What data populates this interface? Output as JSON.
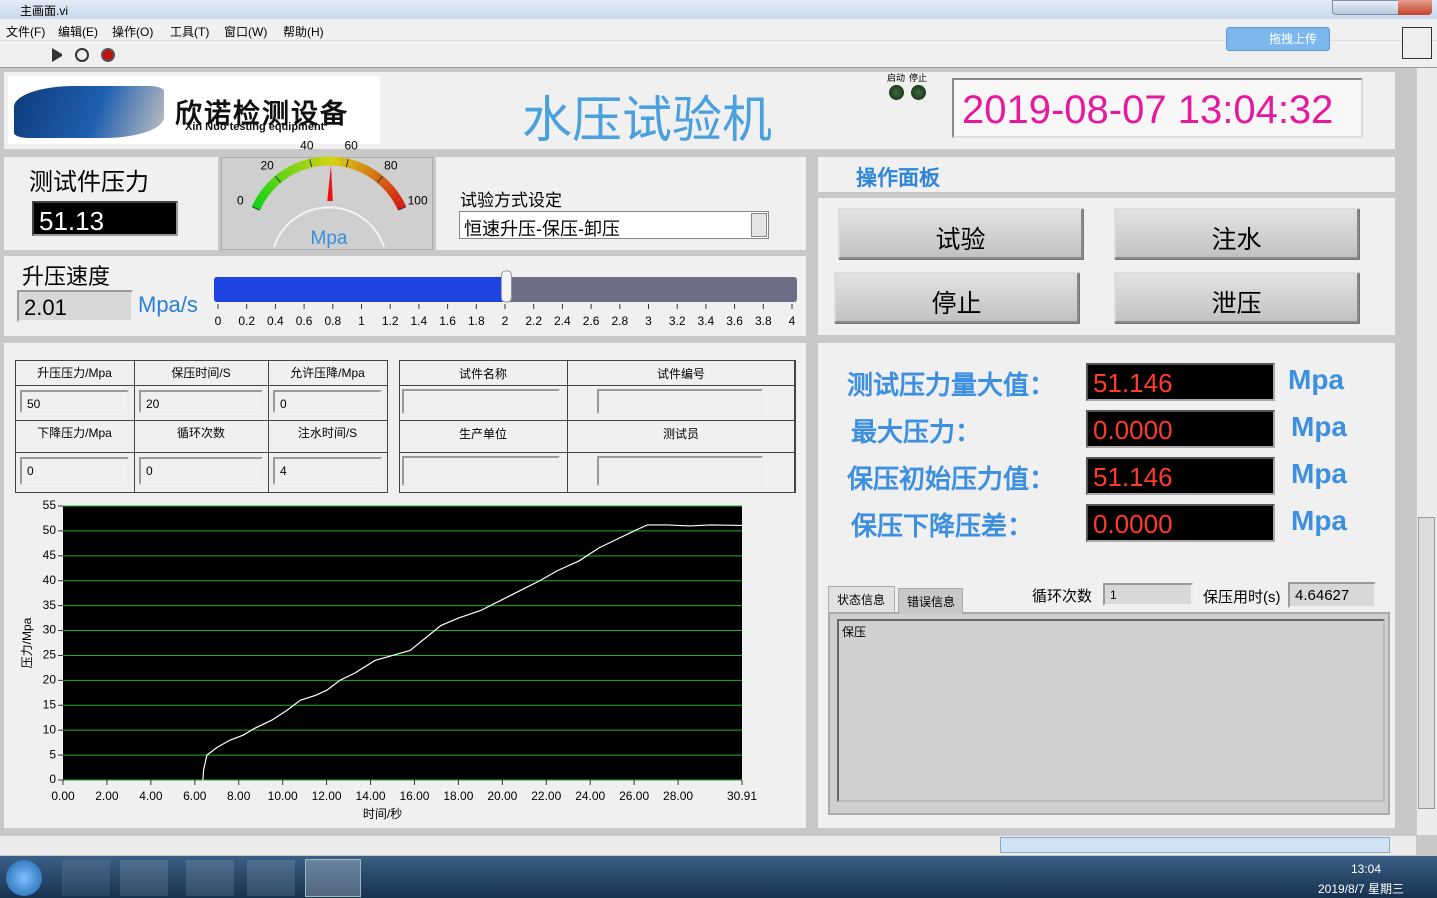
{
  "window": {
    "title": "主画面.vi",
    "menu": [
      "文件(F)",
      "编辑(E)",
      "操作(O)",
      "工具(T)",
      "窗口(W)",
      "帮助(H)"
    ],
    "upload_button": "拖拽上传"
  },
  "header": {
    "logo_text": "欣诺检测设备",
    "logo_subtext": "Xin Nuo testing equipment",
    "title": "水压试验机",
    "indicators": [
      "启动",
      "停止"
    ],
    "datetime": "2019-08-07 13:04:32"
  },
  "pressure": {
    "label": "测试件压力",
    "value": 51.13
  },
  "gauge": {
    "unit": "Mpa",
    "lim": [
      0,
      100
    ],
    "ticks": [
      0,
      20,
      40,
      60,
      80,
      100
    ]
  },
  "test_mode": {
    "label": "试验方式设定",
    "value": "恒速升压-保压-卸压"
  },
  "speed": {
    "label": "升压速度",
    "value": 2.01,
    "unit": "Mpa/s",
    "lim": [
      0,
      4
    ],
    "ticks": [
      0,
      0.2,
      0.4,
      0.6,
      0.8,
      1,
      1.2,
      1.4,
      1.6,
      1.8,
      2,
      2.2,
      2.4,
      2.6,
      2.8,
      3,
      3.2,
      3.4,
      3.6,
      3.8,
      4
    ]
  },
  "params_table": {
    "rows": [
      [
        "升压压力/Mpa",
        "保压时间/S",
        "允许压降/Mpa"
      ],
      [
        50,
        20,
        0
      ],
      [
        "下降压力/Mpa",
        "循环次数",
        "注水时间/S"
      ],
      [
        0,
        0,
        4
      ]
    ]
  },
  "info_table": {
    "rows": [
      [
        "试件名称",
        "试件编号"
      ],
      [
        "生产单位",
        "测试员"
      ]
    ]
  },
  "chart_data": {
    "type": "line",
    "x_label": "时间/秒",
    "y_label": "压力/Mpa",
    "color": "#ffffff",
    "background": "#000000",
    "grid": true,
    "grid_color": "#21b021",
    "x": [
      6.37,
      6.4,
      6.55,
      7.0,
      7.6,
      8.2,
      8.74,
      9.5,
      10.2,
      10.8,
      11.5,
      12.0,
      12.6,
      13.3,
      14.2,
      15.0,
      15.8,
      16.5,
      17.2,
      18.0,
      19.0,
      19.9,
      20.8,
      21.7,
      22.5,
      23.5,
      24.4,
      25.3,
      26.0,
      26.6,
      27.5,
      28.5,
      29.5,
      30.91
    ],
    "values": [
      0,
      2,
      5,
      6.5,
      8,
      9,
      10.4,
      12,
      14,
      16,
      17,
      18,
      20,
      21.5,
      24,
      25,
      26,
      28.5,
      31,
      32.5,
      34,
      36,
      38,
      40,
      42,
      44,
      46.6,
      48.5,
      50,
      51.2,
      51.2,
      51,
      51.2,
      51.1
    ],
    "xlim": [
      0,
      30.91
    ],
    "xticks": [
      {
        "value": 0,
        "label": "0.00"
      },
      {
        "value": 2,
        "label": "2.00"
      },
      {
        "value": 4,
        "label": "4.00"
      },
      {
        "value": 6,
        "label": "6.00"
      },
      {
        "value": 8,
        "label": "8.00"
      },
      {
        "value": 10,
        "label": "10.00"
      },
      {
        "value": 12,
        "label": "12.00"
      },
      {
        "value": 14,
        "label": "14.00"
      },
      {
        "value": 16,
        "label": "16.00"
      },
      {
        "value": 18,
        "label": "18.00"
      },
      {
        "value": 20,
        "label": "20.00"
      },
      {
        "value": 22,
        "label": "22.00"
      },
      {
        "value": 24,
        "label": "24.00"
      },
      {
        "value": 26,
        "label": "26.00"
      },
      {
        "value": 28,
        "label": "28.00"
      },
      {
        "value": 30.91,
        "label": "30.91"
      }
    ],
    "ylim": [
      0,
      55
    ],
    "yticks": [
      0,
      5,
      10,
      15,
      20,
      25,
      30,
      35,
      40,
      45,
      50,
      55
    ]
  },
  "panel": {
    "title": "操作面板",
    "buttons": [
      "试验",
      "注水",
      "停止",
      "泄压"
    ]
  },
  "readings": [
    {
      "label": "测试压力量大值：",
      "value": "51.146",
      "unit": "Mpa"
    },
    {
      "label": "最大压力：",
      "value": "0.0000",
      "unit": "Mpa"
    },
    {
      "label": "保压初始压力值：",
      "value": "51.146",
      "unit": "Mpa"
    },
    {
      "label": "保压下降压差：",
      "value": "0.0000",
      "unit": "Mpa"
    }
  ],
  "status": {
    "tabs": [
      "状态信息",
      "错误信息"
    ],
    "cycle_label": "循环次数",
    "cycle_value": "1",
    "hold_time_label": "保压用时(s)",
    "hold_time_value": "4.64627",
    "message": "保压"
  },
  "taskbar": {
    "time": "13:04",
    "date": "2019/8/7 星期三"
  }
}
